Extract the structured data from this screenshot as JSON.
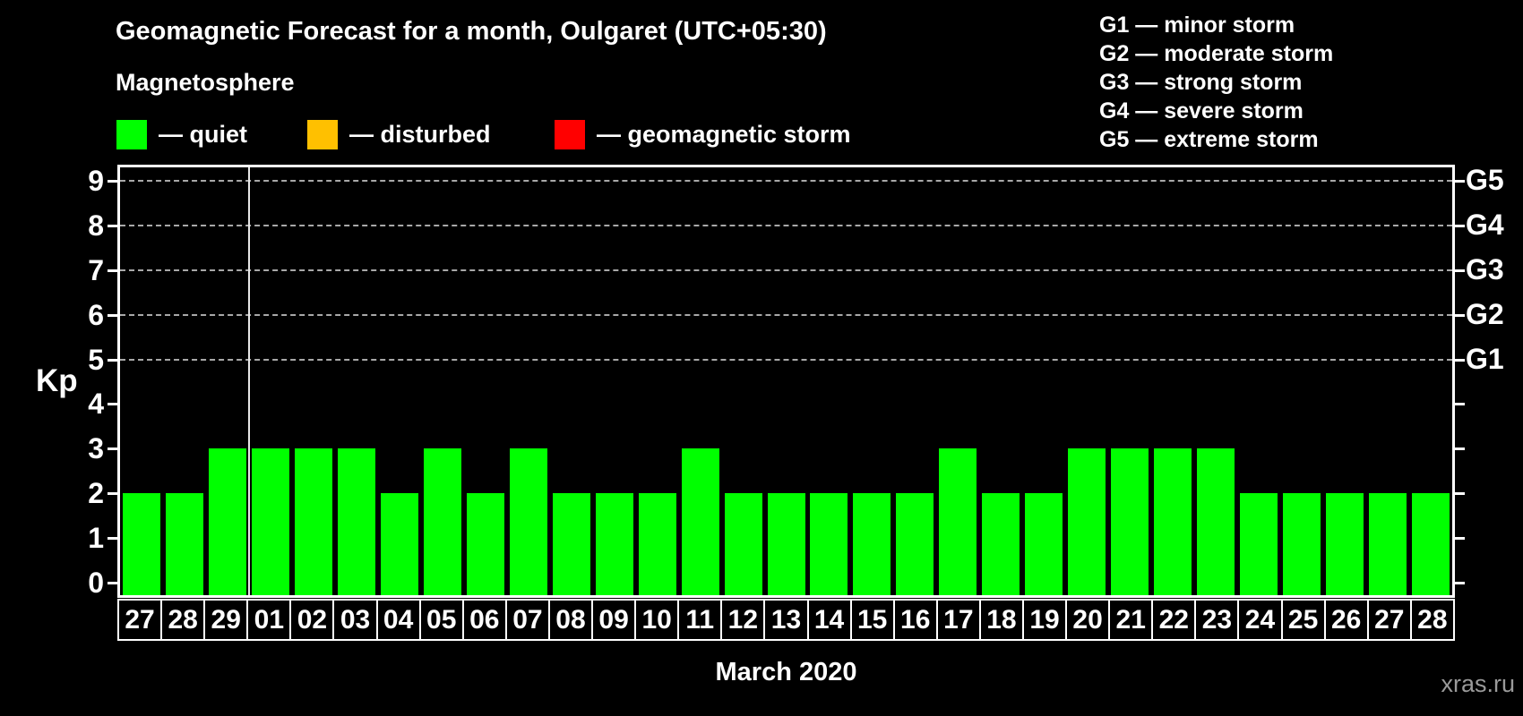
{
  "header": {
    "title": "Geomagnetic Forecast for a month, Oulgaret (UTC+05:30)",
    "subtitle": "Magnetosphere"
  },
  "legend": {
    "items": [
      {
        "label": "— quiet",
        "color": "#00ff00"
      },
      {
        "label": "— disturbed",
        "color": "#ffc000"
      },
      {
        "label": "— geomagnetic storm",
        "color": "#ff0000"
      }
    ]
  },
  "storm_scale_legend": {
    "items": [
      "G1 — minor storm",
      "G2 — moderate storm",
      "G3 — strong storm",
      "G4 — severe storm",
      "G5 — extreme storm"
    ]
  },
  "chart_data": {
    "type": "bar",
    "title": "Geomagnetic Forecast for a month, Oulgaret (UTC+05:30)",
    "categories": [
      "27",
      "28",
      "29",
      "01",
      "02",
      "03",
      "04",
      "05",
      "06",
      "07",
      "08",
      "09",
      "10",
      "11",
      "12",
      "13",
      "14",
      "15",
      "16",
      "17",
      "18",
      "19",
      "20",
      "21",
      "22",
      "23",
      "24",
      "25",
      "26",
      "27",
      "28"
    ],
    "values": [
      2,
      2,
      3,
      3,
      3,
      3,
      2,
      3,
      2,
      3,
      2,
      2,
      2,
      3,
      2,
      2,
      2,
      2,
      2,
      3,
      2,
      2,
      3,
      3,
      3,
      3,
      2,
      2,
      2,
      2,
      2
    ],
    "xlabel": "March 2020",
    "ylabel": "Kp",
    "ylim": [
      -0.3,
      9.4
    ],
    "y_ticks": [
      0,
      1,
      2,
      3,
      4,
      5,
      6,
      7,
      8,
      9
    ],
    "grid_dashed_at": [
      5,
      6,
      7,
      8,
      9
    ],
    "right_axis_labels": [
      {
        "kp": 5,
        "label": "G1"
      },
      {
        "kp": 6,
        "label": "G2"
      },
      {
        "kp": 7,
        "label": "G3"
      },
      {
        "kp": 8,
        "label": "G4"
      },
      {
        "kp": 9,
        "label": "G5"
      }
    ],
    "month_boundary_after_index": 2,
    "status_colors": {
      "quiet": "#00ff00",
      "disturbed": "#ffc000",
      "storm": "#ff0000"
    },
    "color_rules": {
      "quiet_max_kp": 3,
      "disturbed_max_kp": 4
    },
    "legend_position": "top-left",
    "grid": "dashed horizontal at storm levels only"
  },
  "footer": {
    "xlabel": "March 2020",
    "watermark": "xras.ru"
  }
}
